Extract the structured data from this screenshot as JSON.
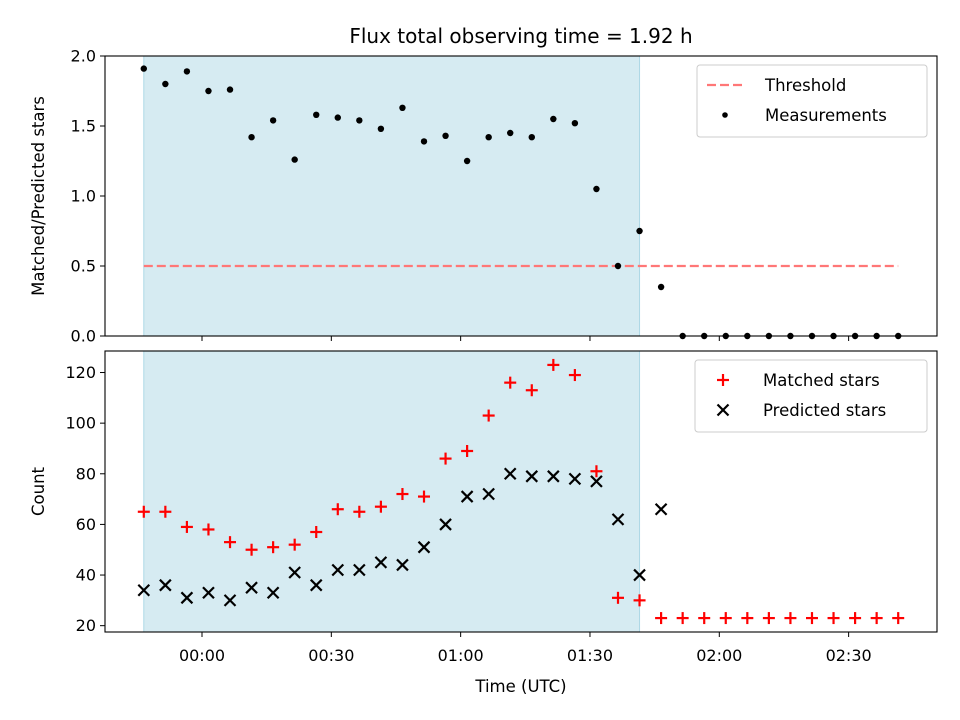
{
  "chart_data": {
    "title": "Flux total observing time = 1.92 h",
    "xlabel": "Time (UTC)",
    "x_tick_labels": [
      "00:00",
      "00:30",
      "01:00",
      "01:30",
      "02:00",
      "02:30"
    ],
    "x_tick_minutes": [
      0,
      30,
      60,
      90,
      120,
      150
    ],
    "xlim_minutes": [
      -22.5,
      170.5
    ],
    "observing_window_minutes": [
      -13.5,
      101.5
    ],
    "observing_window_color": "#add8e6",
    "x_minutes": [
      -13.5,
      -8.5,
      -3.5,
      1.5,
      6.5,
      11.5,
      16.5,
      21.5,
      26.5,
      31.5,
      36.5,
      41.5,
      46.5,
      51.5,
      56.5,
      61.5,
      66.5,
      71.5,
      76.5,
      81.5,
      86.5,
      91.5,
      96.5,
      101.5,
      106.5,
      111.5,
      116.5,
      121.5,
      126.5,
      131.5,
      136.5,
      141.5,
      146.5,
      151.5,
      156.5,
      161.5
    ],
    "panels": [
      {
        "type": "scatter",
        "ylabel": "Matched/Predicted stars",
        "ylim": [
          0,
          2.0
        ],
        "y_ticks": [
          0.0,
          0.5,
          1.0,
          1.5,
          2.0
        ],
        "y_tick_labels": [
          "0.0",
          "0.5",
          "1.0",
          "1.5",
          "2.0"
        ],
        "legend_position": "top-right",
        "threshold": {
          "name": "Threshold",
          "value": 0.5,
          "x_range_minutes": [
            -13.5,
            161.5
          ],
          "color": "#ff7777"
        },
        "series": [
          {
            "name": "Measurements",
            "marker": "dot",
            "color": "#000000",
            "values": [
              1.91,
              1.8,
              1.89,
              1.75,
              1.76,
              1.42,
              1.54,
              1.26,
              1.58,
              1.56,
              1.54,
              1.48,
              1.63,
              1.39,
              1.43,
              1.25,
              1.42,
              1.45,
              1.42,
              1.55,
              1.52,
              1.05,
              0.5,
              0.75,
              0.35,
              0,
              0,
              0,
              0,
              0,
              0,
              0,
              0,
              0,
              0,
              0
            ]
          }
        ]
      },
      {
        "type": "scatter",
        "ylabel": "Count",
        "ylim": [
          17.5,
          128.5
        ],
        "y_ticks": [
          20,
          40,
          60,
          80,
          100,
          120
        ],
        "y_tick_labels": [
          "20",
          "40",
          "60",
          "80",
          "100",
          "120"
        ],
        "legend_position": "top-right",
        "series": [
          {
            "name": "Matched stars",
            "marker": "plus",
            "color": "#ff0000",
            "values": [
              65,
              65,
              59,
              58,
              53,
              50,
              51,
              52,
              57,
              66,
              65,
              67,
              72,
              71,
              86,
              89,
              103,
              116,
              113,
              123,
              119,
              81,
              31,
              30,
              23,
              23,
              23,
              23,
              23,
              23,
              23,
              23,
              23,
              23,
              23,
              23
            ]
          },
          {
            "name": "Predicted stars",
            "marker": "x",
            "color": "#000000",
            "values": [
              34,
              36,
              31,
              33,
              30,
              35,
              33,
              41,
              36,
              42,
              42,
              45,
              44,
              51,
              60,
              71,
              72,
              80,
              79,
              79,
              78,
              77,
              62,
              40,
              66,
              null,
              null,
              null,
              null,
              null,
              null,
              null,
              null,
              null,
              null,
              null
            ]
          }
        ]
      }
    ]
  }
}
